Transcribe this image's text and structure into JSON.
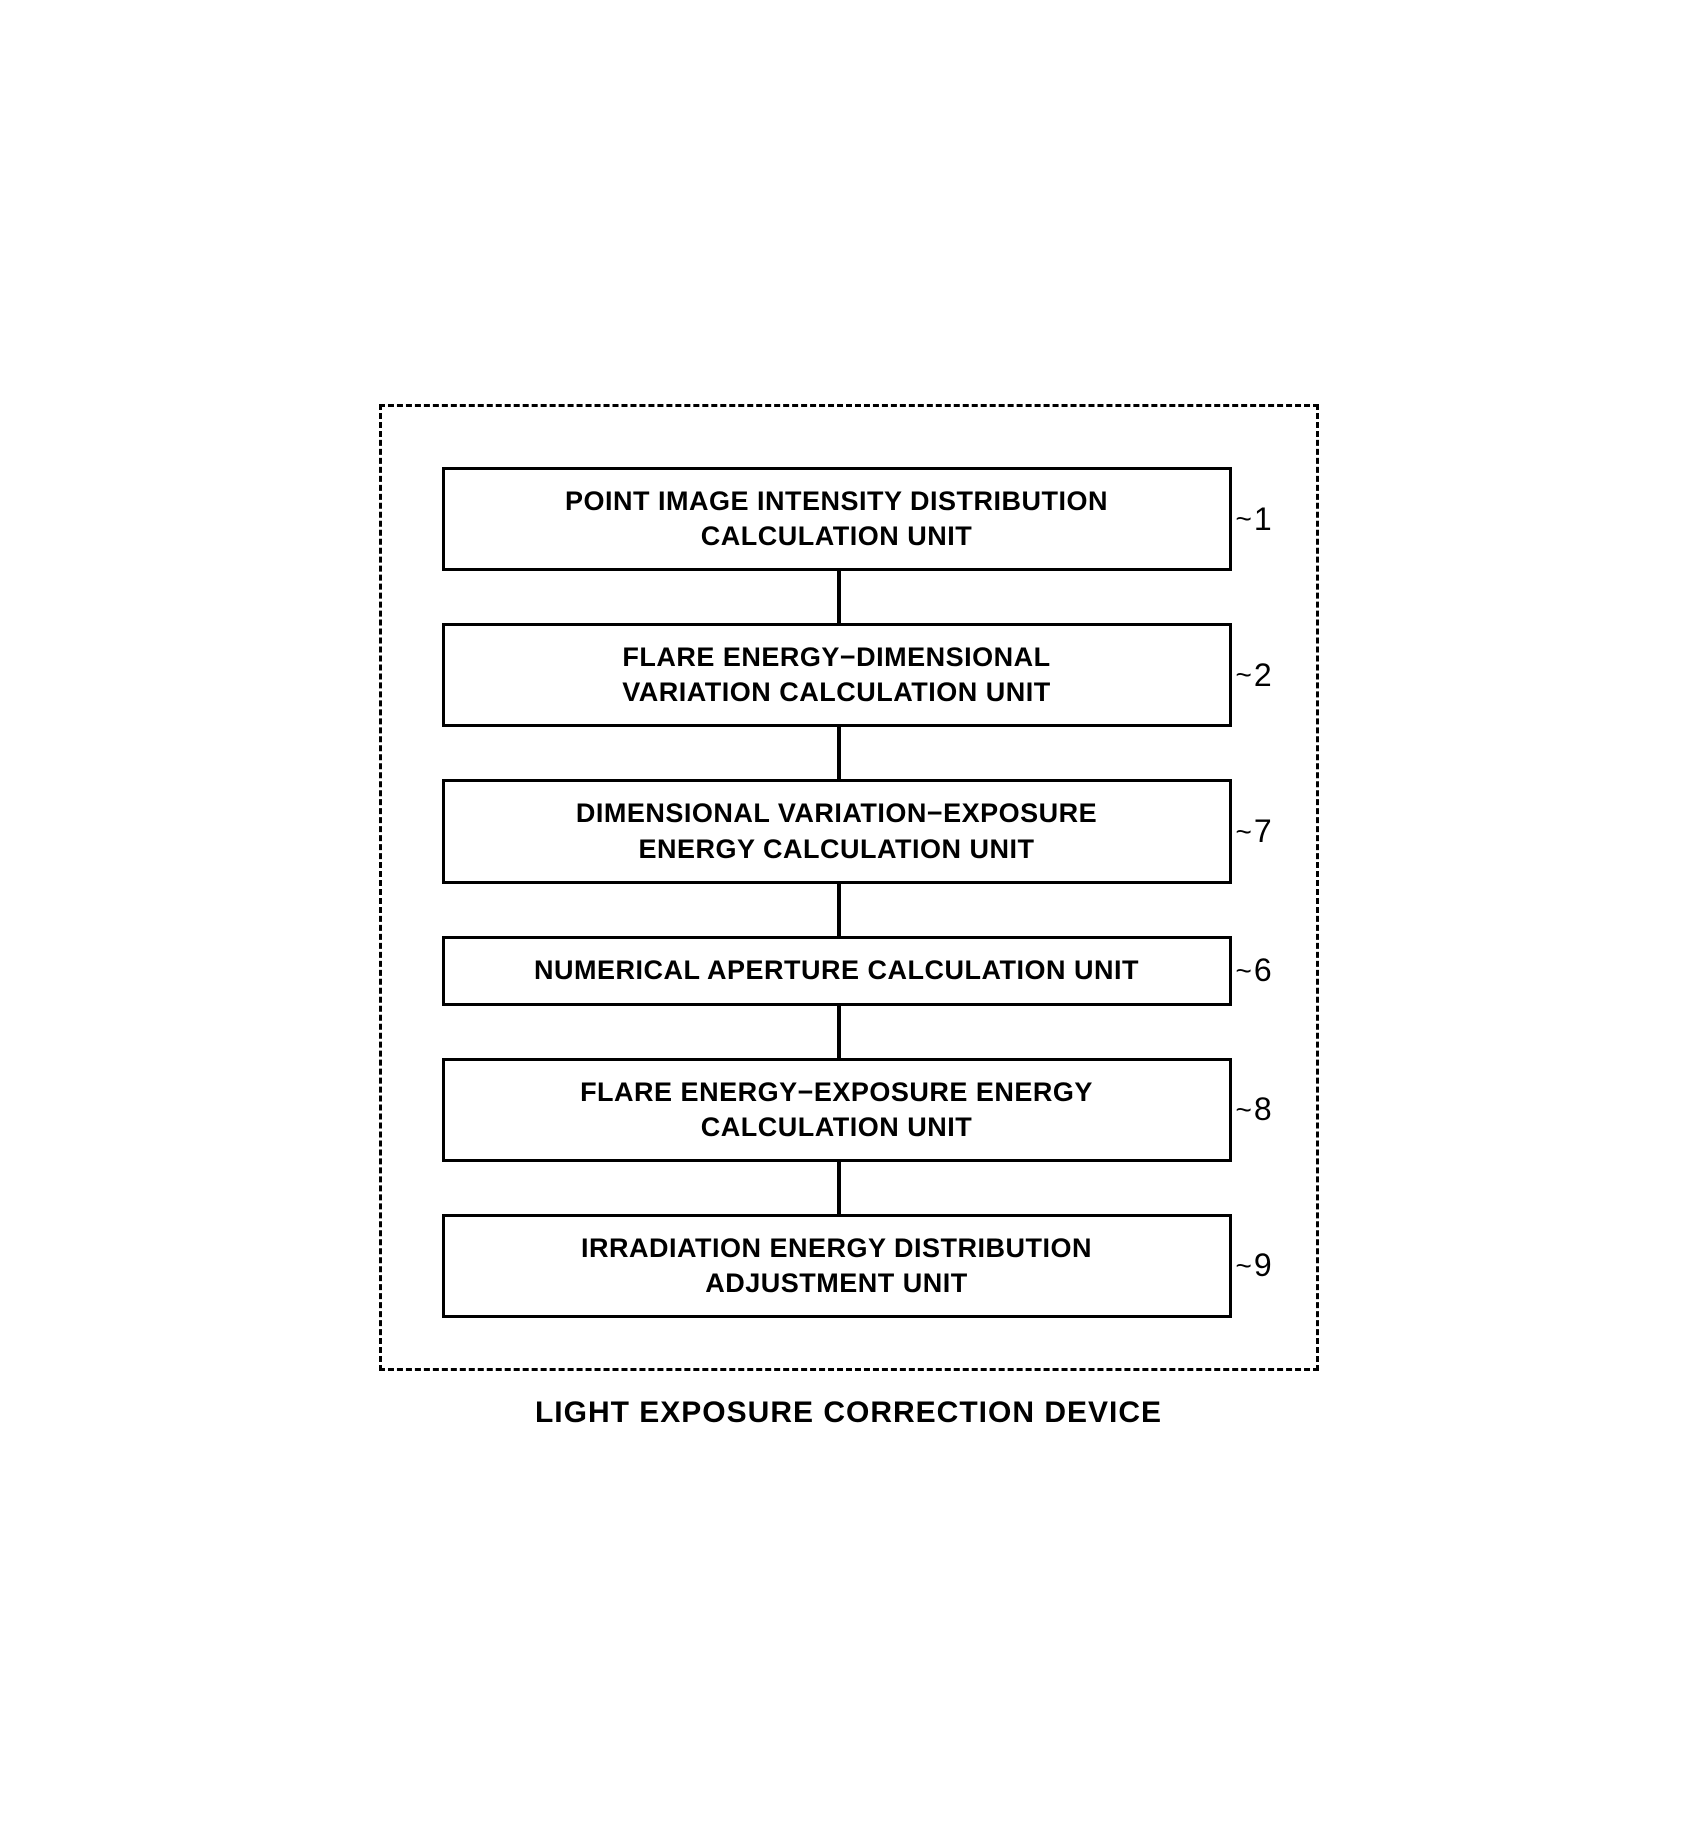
{
  "diagram": {
    "caption": "LIGHT EXPOSURE CORRECTION DEVICE",
    "container_border_style": "dashed",
    "container_border_color": "#000000",
    "box_border_color": "#000000",
    "connector_color": "#000000",
    "background_color": "#ffffff",
    "text_color": "#000000",
    "box_fontsize": 27,
    "label_fontsize": 32,
    "caption_fontsize": 30,
    "nodes": [
      {
        "id": "node-1",
        "line1": "POINT IMAGE INTENSITY DISTRIBUTION",
        "line2": "CALCULATION UNIT",
        "label": "1",
        "multiline": true
      },
      {
        "id": "node-2",
        "line1": "FLARE ENERGY−DIMENSIONAL",
        "line2": "VARIATION CALCULATION UNIT",
        "label": "2",
        "multiline": true
      },
      {
        "id": "node-7",
        "line1": "DIMENSIONAL VARIATION−EXPOSURE",
        "line2": "ENERGY CALCULATION UNIT",
        "label": "7",
        "multiline": true
      },
      {
        "id": "node-6",
        "line1": "NUMERICAL APERTURE CALCULATION UNIT",
        "line2": "",
        "label": "6",
        "multiline": false
      },
      {
        "id": "node-8",
        "line1": "FLARE ENERGY−EXPOSURE ENERGY",
        "line2": "CALCULATION UNIT",
        "label": "8",
        "multiline": true
      },
      {
        "id": "node-9",
        "line1": "IRRADIATION ENERGY DISTRIBUTION",
        "line2": "ADJUSTMENT UNIT",
        "label": "9",
        "multiline": true
      }
    ]
  }
}
